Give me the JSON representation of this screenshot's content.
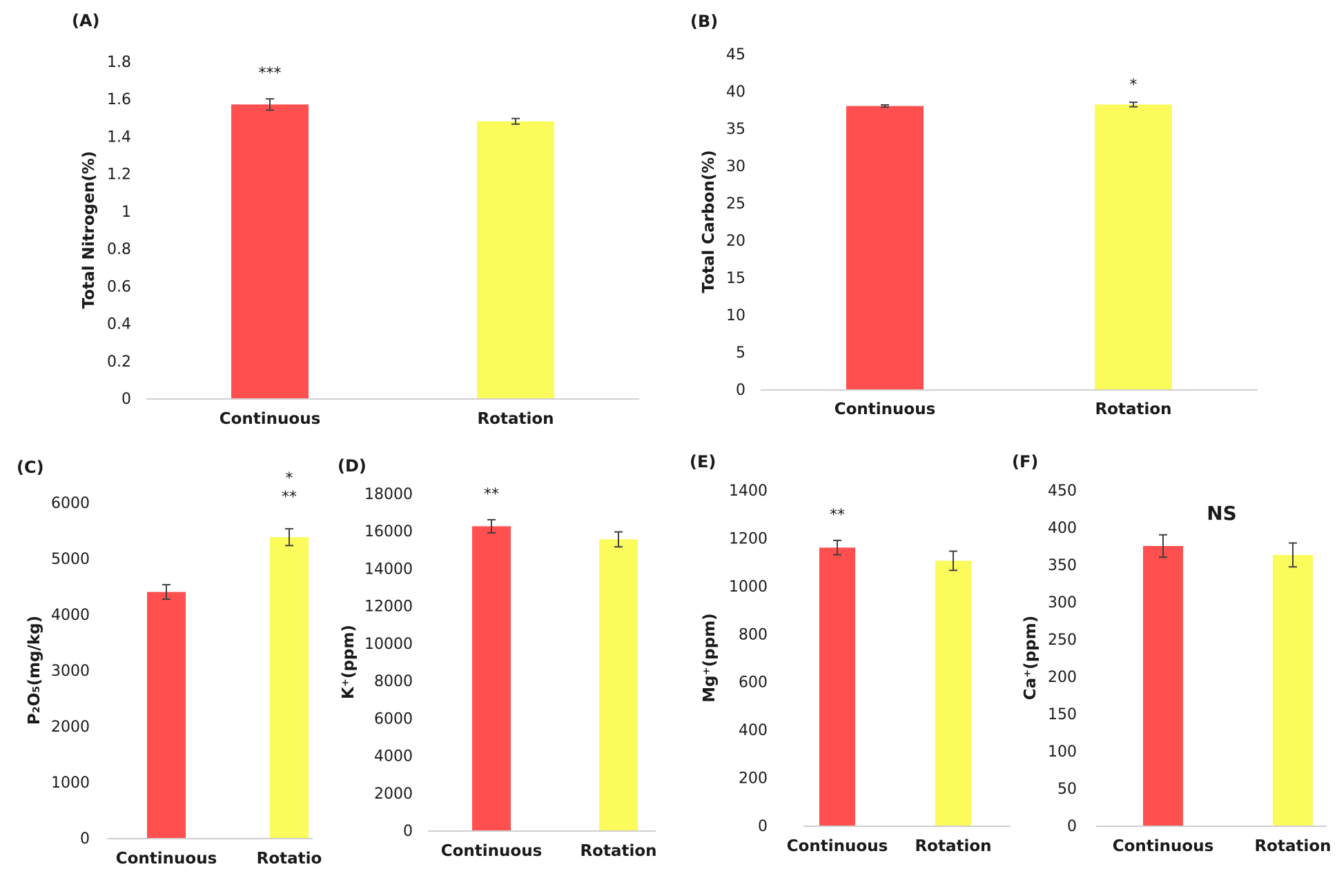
{
  "colors": {
    "continuous": "#ff4f4f",
    "rotation": "#fbfb5c",
    "axis": "#d0d0d0"
  },
  "chart_data": [
    {
      "panel": "(A)",
      "type": "bar",
      "ylabel": "Total Nitrogen(%)",
      "categories": [
        "Continuous",
        "Rotation"
      ],
      "values": [
        1.57,
        1.48
      ],
      "errors": [
        0.03,
        0.015
      ],
      "significance": [
        "***",
        ""
      ],
      "yticks": [
        "0",
        "0.2",
        "0.4",
        "0.6",
        "0.8",
        "1",
        "1.2",
        "1.4",
        "1.6",
        "1.8"
      ],
      "ylim": [
        0,
        1.8
      ]
    },
    {
      "panel": "(B)",
      "type": "bar",
      "ylabel": "Total Carbon(%)",
      "categories": [
        "Continuous",
        "Rotation"
      ],
      "values": [
        38.0,
        38.2
      ],
      "errors": [
        0.15,
        0.3
      ],
      "significance": [
        "",
        "*"
      ],
      "yticks": [
        "0",
        "5",
        "10",
        "15",
        "20",
        "25",
        "30",
        "35",
        "40",
        "45"
      ],
      "ylim": [
        0,
        45
      ]
    },
    {
      "panel": "(C)",
      "type": "bar",
      "ylabel": "P₂O₅(mg/kg)",
      "categories": [
        "Continuous",
        "Rotatio"
      ],
      "values": [
        4400,
        5380
      ],
      "errors": [
        130,
        150
      ],
      "significance": [
        "",
        "**\n*"
      ],
      "yticks": [
        "0",
        "1000",
        "2000",
        "3000",
        "4000",
        "5000",
        "6000"
      ],
      "ylim": [
        0,
        6000
      ]
    },
    {
      "panel": "(D)",
      "type": "bar",
      "ylabel": "K⁺(ppm)",
      "categories": [
        "Continuous",
        "Rotation"
      ],
      "values": [
        16250,
        15550
      ],
      "errors": [
        350,
        400
      ],
      "significance": [
        "**",
        ""
      ],
      "yticks": [
        "0",
        "2000",
        "4000",
        "6000",
        "8000",
        "10000",
        "12000",
        "14000",
        "16000",
        "18000"
      ],
      "ylim": [
        0,
        18000
      ]
    },
    {
      "panel": "(E)",
      "type": "bar",
      "ylabel": "Mg⁺(ppm)",
      "categories": [
        "Continuous",
        "Rotation"
      ],
      "values": [
        1160,
        1105
      ],
      "errors": [
        30,
        40
      ],
      "significance": [
        "**",
        ""
      ],
      "yticks": [
        "0",
        "200",
        "400",
        "600",
        "800",
        "1000",
        "1200",
        "1400"
      ],
      "ylim": [
        0,
        1400
      ]
    },
    {
      "panel": "(F)",
      "type": "bar",
      "ylabel": "Ca⁺(ppm)",
      "categories": [
        "Continuous",
        "Rotation"
      ],
      "values": [
        375,
        363
      ],
      "errors": [
        15,
        16
      ],
      "significance": [
        "NS"
      ],
      "yticks": [
        "0",
        "50",
        "100",
        "150",
        "200",
        "250",
        "300",
        "350",
        "400",
        "450"
      ],
      "ylim": [
        0,
        450
      ]
    }
  ]
}
